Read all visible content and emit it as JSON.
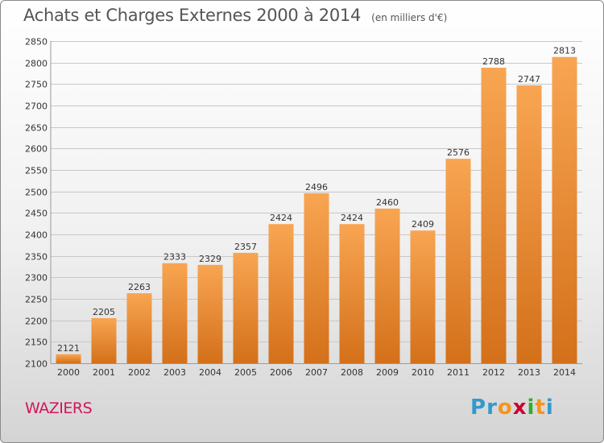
{
  "title": "Achats et Charges Externes 2000 à 2014",
  "unit": "(en milliers d'€)",
  "commune": "WAZIERS",
  "logo": {
    "letters": [
      "P",
      "r",
      "o",
      "x",
      "i",
      "t",
      "i"
    ],
    "colors": [
      "#3399cc",
      "#3399cc",
      "#f7941d",
      "#cc0033",
      "#33aa33",
      "#f7941d",
      "#3399cc"
    ]
  },
  "colors": {
    "bar_light": "#f8a552",
    "bar_dark": "#d4701a"
  },
  "chart_data": {
    "type": "bar",
    "categories": [
      "2000",
      "2001",
      "2002",
      "2003",
      "2004",
      "2005",
      "2006",
      "2007",
      "2008",
      "2009",
      "2010",
      "2011",
      "2012",
      "2013",
      "2014"
    ],
    "values": [
      2121,
      2205,
      2263,
      2333,
      2329,
      2357,
      2424,
      2496,
      2424,
      2460,
      2409,
      2576,
      2788,
      2747,
      2813
    ],
    "ylim": [
      2100,
      2850
    ],
    "yticks": [
      2100,
      2150,
      2200,
      2250,
      2300,
      2350,
      2400,
      2450,
      2500,
      2550,
      2600,
      2650,
      2700,
      2750,
      2800,
      2850
    ],
    "grid": true,
    "xlabel": "",
    "ylabel": ""
  }
}
